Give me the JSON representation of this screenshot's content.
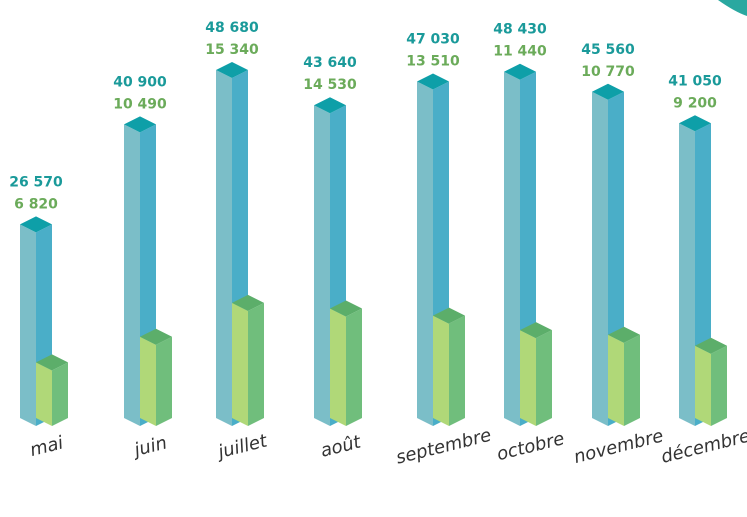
{
  "chart_data": {
    "type": "bar",
    "categories": [
      "mai",
      "juin",
      "juillet",
      "août",
      "septembre",
      "octobre",
      "novembre",
      "décembre"
    ],
    "series": [
      {
        "values": [
          26570,
          40900,
          48680,
          43640,
          47030,
          48430,
          45560,
          41050
        ]
      },
      {
        "values": [
          6820,
          10490,
          15340,
          14530,
          13510,
          11440,
          10770,
          9200
        ]
      }
    ],
    "value_labels": [
      [
        "26 570",
        "40 900",
        "48 680",
        "43 640",
        "47 030",
        "48 430",
        "45 560",
        "41 050"
      ],
      [
        "6 820",
        "10 490",
        "15 340",
        "14 530",
        "13 510",
        "11 440",
        "10 770",
        "9 200"
      ]
    ],
    "title": "",
    "xlabel": "",
    "ylabel": "",
    "ylim": [
      0,
      48680
    ],
    "grid": false,
    "legend": "none"
  },
  "colors": {
    "series_a_front": "#7bbec8",
    "series_a_side": "#4aaec8",
    "series_a_top": "#0e9fa8",
    "series_b_front": "#b0d878",
    "series_b_side": "#70be7c",
    "series_b_top": "#5cae6a",
    "label_a": "#1a9a9a",
    "label_b": "#6bab5a",
    "corner_accent": "#2aa8a0"
  }
}
